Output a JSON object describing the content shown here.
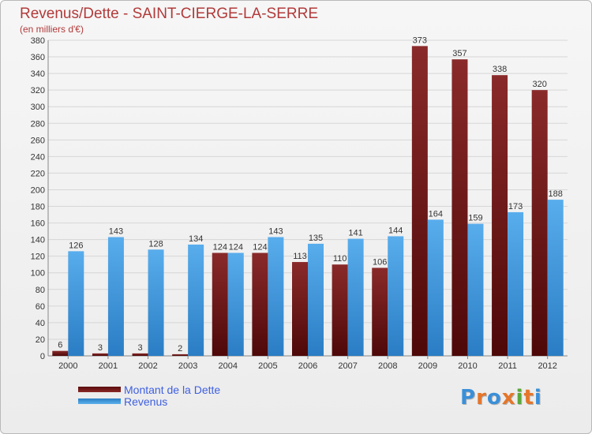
{
  "header": {
    "title": "Revenus/Dette - SAINT-CIERGE-LA-SERRE",
    "subtitle": "(en milliers d'€)"
  },
  "colors": {
    "dette": "#7a1a1a",
    "revenus": "#3f9be0",
    "title": "#b23a3a",
    "legend_text": "#3f60e0"
  },
  "chart_data": {
    "type": "bar",
    "title": "Revenus/Dette - SAINT-CIERGE-LA-SERRE",
    "ylabel": "(en milliers d'€)",
    "xlabel": "",
    "ylim": [
      0,
      380
    ],
    "ytick_step": 20,
    "grid": true,
    "legend_position": "bottom-left",
    "categories": [
      "2000",
      "2001",
      "2002",
      "2003",
      "2004",
      "2005",
      "2006",
      "2007",
      "2008",
      "2009",
      "2010",
      "2011",
      "2012"
    ],
    "series": [
      {
        "name": "Montant de la Dette",
        "values": [
          6,
          3,
          3,
          2,
          124,
          124,
          113,
          110,
          106,
          373,
          357,
          338,
          320
        ]
      },
      {
        "name": "Revenus",
        "values": [
          126,
          143,
          128,
          134,
          124,
          143,
          135,
          141,
          144,
          164,
          159,
          173,
          188
        ]
      }
    ]
  },
  "legend": {
    "items": [
      "Montant de la Dette",
      "Revenus"
    ]
  },
  "logo": {
    "text": "Proxiti"
  }
}
